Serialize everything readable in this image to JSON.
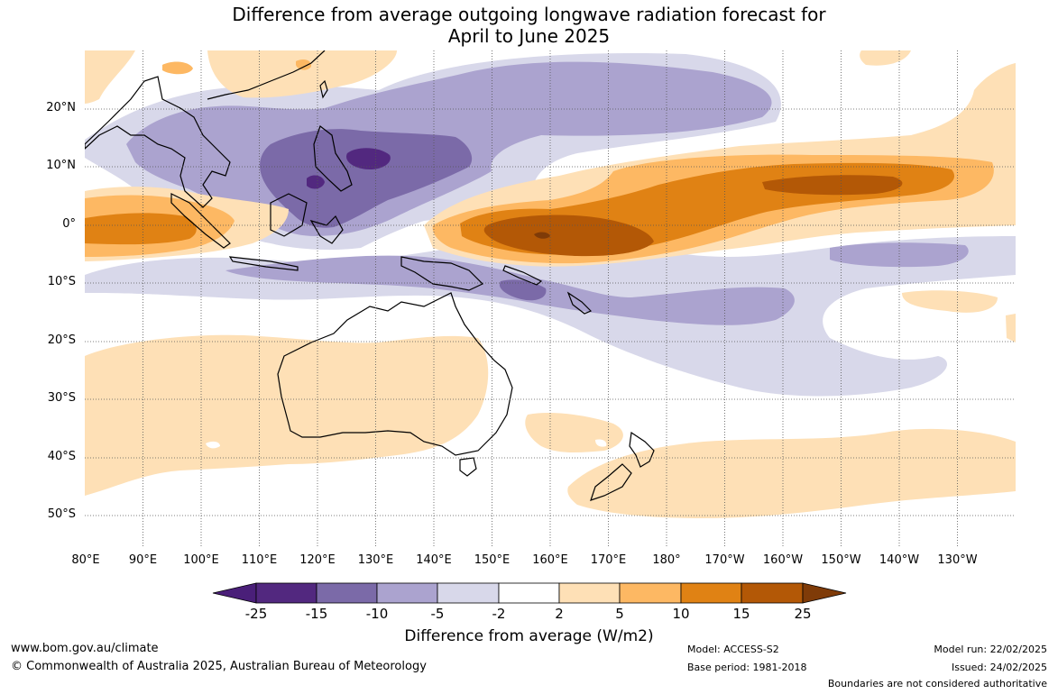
{
  "title": {
    "line1": "Difference from average outgoing longwave radiation forecast for",
    "line2": "April to June 2025"
  },
  "map": {
    "region": "Australia and western Pacific",
    "lon_range": [
      80,
      240
    ],
    "lat_range": [
      -55,
      30
    ],
    "gridlines": true
  },
  "axes": {
    "lat_labels": [
      "20°N",
      "10°N",
      "0°",
      "10°S",
      "20°S",
      "30°S",
      "40°S",
      "50°S"
    ],
    "lon_labels": [
      "80°E",
      "90°E",
      "100°E",
      "110°E",
      "120°E",
      "130°E",
      "140°E",
      "150°E",
      "160°E",
      "170°E",
      "180°",
      "170°W",
      "160°W",
      "150°W",
      "140°W",
      "130°W"
    ]
  },
  "colorbar": {
    "tick_labels": [
      "-25",
      "-15",
      "-10",
      "-5",
      "-2",
      "2",
      "5",
      "10",
      "15",
      "25"
    ],
    "colors": [
      "#4a1f79",
      "#52287f",
      "#7b6aa8",
      "#aba3cf",
      "#d8d8ea",
      "#ffffff",
      "#fee0b6",
      "#fdb863",
      "#e08214",
      "#b35806",
      "#7f3b08"
    ],
    "title": "Difference from average (W/m2)"
  },
  "footer": {
    "website": "www.bom.gov.au/climate",
    "copyright": "© Commonwealth of Australia 2025, Australian Bureau of Meteorology",
    "model": "Model: ACCESS-S2",
    "base_period": "Base period: 1981-2018",
    "model_run": "Model run: 22/02/2025",
    "issued": "Issued: 24/02/2025",
    "disclaimer": "Boundaries are not considered authoritative"
  }
}
